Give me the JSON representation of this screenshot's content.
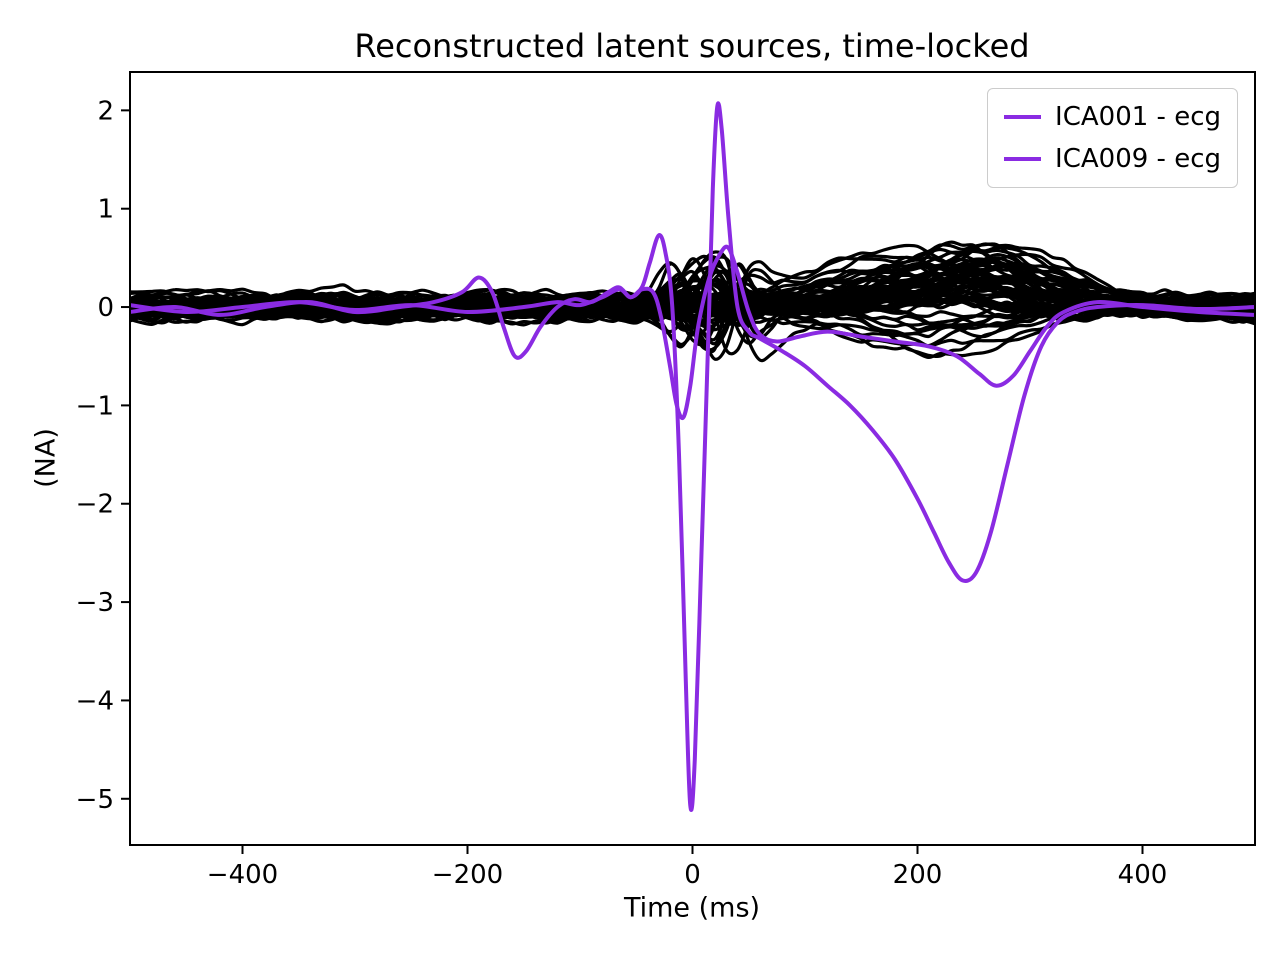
{
  "chart_data": {
    "type": "line",
    "title": "Reconstructed latent sources, time-locked",
    "xlabel": "Time (ms)",
    "ylabel": "(NA)",
    "xlim": [
      -500,
      500
    ],
    "ylim": [
      -5.47,
      2.39
    ],
    "grid": false,
    "xticks": [
      {
        "value": -400,
        "label": "−400"
      },
      {
        "value": -200,
        "label": "−200"
      },
      {
        "value": 0,
        "label": "0"
      },
      {
        "value": 200,
        "label": "200"
      },
      {
        "value": 400,
        "label": "400"
      }
    ],
    "yticks": [
      {
        "value": 2,
        "label": "2"
      },
      {
        "value": 1,
        "label": "1"
      },
      {
        "value": 0,
        "label": "0"
      },
      {
        "value": -1,
        "label": "−1"
      },
      {
        "value": -2,
        "label": "−2"
      },
      {
        "value": -3,
        "label": "−3"
      },
      {
        "value": -4,
        "label": "−4"
      },
      {
        "value": -5,
        "label": "−5"
      }
    ],
    "legend": {
      "position": "upper right",
      "entries": [
        {
          "label": "ICA001 - ecg",
          "color": "#8A2BE2"
        },
        {
          "label": "ICA009 - ecg",
          "color": "#8A2BE2"
        }
      ]
    },
    "series": [
      {
        "name": "ICA001 - ecg",
        "color": "#8A2BE2",
        "points": [
          [
            -500,
            0.02
          ],
          [
            -450,
            -0.05
          ],
          [
            -400,
            0.0
          ],
          [
            -350,
            0.05
          ],
          [
            -300,
            -0.03
          ],
          [
            -250,
            0.02
          ],
          [
            -200,
            -0.05
          ],
          [
            -150,
            0.0
          ],
          [
            -120,
            0.05
          ],
          [
            -100,
            0.02
          ],
          [
            -80,
            0.1
          ],
          [
            -65,
            0.18
          ],
          [
            -55,
            0.1
          ],
          [
            -45,
            0.2
          ],
          [
            -38,
            0.45
          ],
          [
            -30,
            0.73
          ],
          [
            -24,
            0.55
          ],
          [
            -18,
            0.0
          ],
          [
            -12,
            -1.5
          ],
          [
            -6,
            -3.8
          ],
          [
            -2,
            -5.07
          ],
          [
            2,
            -4.6
          ],
          [
            8,
            -2.5
          ],
          [
            14,
            -0.3
          ],
          [
            18,
            1.2
          ],
          [
            22,
            2.04
          ],
          [
            26,
            1.8
          ],
          [
            32,
            0.9
          ],
          [
            40,
            0.0
          ],
          [
            50,
            -0.25
          ],
          [
            60,
            -0.32
          ],
          [
            80,
            -0.45
          ],
          [
            100,
            -0.6
          ],
          [
            120,
            -0.8
          ],
          [
            140,
            -1.0
          ],
          [
            160,
            -1.25
          ],
          [
            180,
            -1.55
          ],
          [
            200,
            -1.95
          ],
          [
            215,
            -2.3
          ],
          [
            228,
            -2.6
          ],
          [
            240,
            -2.78
          ],
          [
            252,
            -2.7
          ],
          [
            265,
            -2.3
          ],
          [
            280,
            -1.6
          ],
          [
            295,
            -0.9
          ],
          [
            310,
            -0.4
          ],
          [
            325,
            -0.15
          ],
          [
            340,
            -0.05
          ],
          [
            360,
            0.0
          ],
          [
            400,
            0.02
          ],
          [
            450,
            -0.02
          ],
          [
            500,
            0.0
          ]
        ]
      },
      {
        "name": "ICA009 - ecg",
        "color": "#8A2BE2",
        "points": [
          [
            -500,
            -0.05
          ],
          [
            -460,
            0.0
          ],
          [
            -420,
            -0.08
          ],
          [
            -380,
            0.0
          ],
          [
            -340,
            0.05
          ],
          [
            -300,
            -0.05
          ],
          [
            -260,
            0.0
          ],
          [
            -230,
            0.05
          ],
          [
            -205,
            0.15
          ],
          [
            -190,
            0.3
          ],
          [
            -178,
            0.15
          ],
          [
            -168,
            -0.2
          ],
          [
            -158,
            -0.5
          ],
          [
            -148,
            -0.45
          ],
          [
            -135,
            -0.2
          ],
          [
            -120,
            0.0
          ],
          [
            -105,
            0.08
          ],
          [
            -90,
            0.05
          ],
          [
            -75,
            0.15
          ],
          [
            -65,
            0.2
          ],
          [
            -55,
            0.1
          ],
          [
            -45,
            0.18
          ],
          [
            -35,
            0.15
          ],
          [
            -28,
            -0.1
          ],
          [
            -20,
            -0.6
          ],
          [
            -14,
            -1.0
          ],
          [
            -8,
            -1.12
          ],
          [
            -2,
            -0.8
          ],
          [
            5,
            -0.2
          ],
          [
            15,
            0.3
          ],
          [
            25,
            0.55
          ],
          [
            32,
            0.6
          ],
          [
            40,
            0.35
          ],
          [
            50,
            -0.05
          ],
          [
            60,
            -0.28
          ],
          [
            75,
            -0.35
          ],
          [
            95,
            -0.3
          ],
          [
            120,
            -0.25
          ],
          [
            150,
            -0.3
          ],
          [
            180,
            -0.35
          ],
          [
            210,
            -0.4
          ],
          [
            235,
            -0.5
          ],
          [
            255,
            -0.68
          ],
          [
            270,
            -0.8
          ],
          [
            285,
            -0.7
          ],
          [
            300,
            -0.45
          ],
          [
            315,
            -0.2
          ],
          [
            330,
            -0.05
          ],
          [
            360,
            0.05
          ],
          [
            400,
            0.0
          ],
          [
            450,
            -0.05
          ],
          [
            500,
            -0.08
          ]
        ]
      }
    ],
    "background_traces": {
      "description": "ensemble of non-ECG latent sources clustered near 0",
      "count": 58,
      "color": "#000000",
      "seed": 42,
      "step_ms": 10,
      "noise_amplitude": 0.09,
      "offset_range": [
        -0.08,
        0.08
      ],
      "event_bump": {
        "t_range": [
          -20,
          30
        ],
        "sigma_range": [
          8,
          23
        ],
        "max_amp": 0.55
      },
      "late_bump": {
        "t_range": [
          170,
          280
        ],
        "sigma_range": [
          35,
          80
        ],
        "neg_fraction": 0.22,
        "neg_amp_range": [
          0.15,
          0.65
        ],
        "pos_amp_range": [
          0.05,
          0.6
        ]
      }
    }
  }
}
